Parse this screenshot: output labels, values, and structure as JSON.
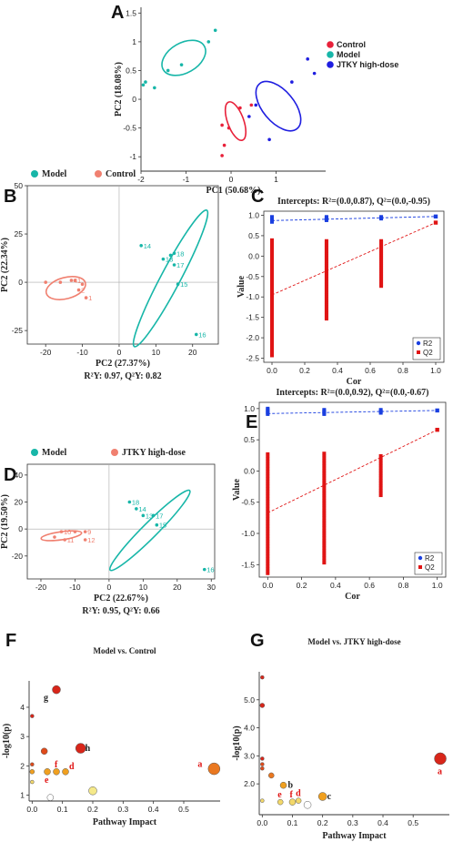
{
  "chart_data": [
    {
      "panel": "A",
      "type": "scatter",
      "title": "",
      "xlabel": "PC1 (50.68%)",
      "ylabel": "PC2 (18.08%)",
      "xlim": [
        -2,
        2.1
      ],
      "ylim": [
        -1.25,
        1.6
      ],
      "xticks": [
        -2,
        -1,
        0,
        1
      ],
      "yticks": [
        -1,
        -0.5,
        0,
        0.5,
        1,
        1.5
      ],
      "xtick_labels": [
        "-2",
        "-1",
        "0",
        "1"
      ],
      "ytick_labels": [
        "-1",
        "-0.5",
        "0",
        "0.5",
        "1",
        "1.5"
      ],
      "legend": [
        "Control",
        "Model",
        "JTKY high-dose"
      ],
      "legend_position": "right",
      "colors": [
        "#e8213a",
        "#17b6a8",
        "#1f1ee0"
      ],
      "series": [
        {
          "name": "Control",
          "color": "#e8213a",
          "points": [
            [
              -0.2,
              -0.45
            ],
            [
              -0.15,
              -0.8
            ],
            [
              -0.2,
              -0.98
            ],
            [
              0.2,
              -0.15
            ],
            [
              0.45,
              -0.1
            ],
            [
              -0.05,
              -0.5
            ]
          ]
        },
        {
          "name": "Model",
          "color": "#17b6a8",
          "points": [
            [
              -1.9,
              0.3
            ],
            [
              -1.7,
              0.2
            ],
            [
              -1.4,
              0.5
            ],
            [
              -1.1,
              0.6
            ],
            [
              -0.5,
              1.0
            ],
            [
              -0.35,
              1.2
            ],
            [
              -1.95,
              0.25
            ]
          ]
        },
        {
          "name": "JTKY high-dose",
          "color": "#1f1ee0",
          "points": [
            [
              0.55,
              -0.1
            ],
            [
              0.85,
              -0.7
            ],
            [
              1.35,
              0.3
            ],
            [
              1.7,
              0.7
            ],
            [
              1.85,
              0.45
            ],
            [
              0.4,
              -0.3
            ]
          ]
        }
      ],
      "ellipses": [
        {
          "cx": -1.05,
          "cy": 0.72,
          "rx": 1.05,
          "ry": 0.52,
          "angle_deg": -30,
          "color": "#17b6a8"
        },
        {
          "cx": 0.1,
          "cy": -0.38,
          "rx": 0.9,
          "ry": 0.28,
          "angle_deg": 70,
          "color": "#e8213a"
        },
        {
          "cx": 1.05,
          "cy": -0.12,
          "rx": 1.3,
          "ry": 0.55,
          "angle_deg": 50,
          "color": "#1f1ee0"
        }
      ]
    },
    {
      "panel": "B",
      "type": "scatter",
      "title": "",
      "xlabel": "PC2 (27.37%)",
      "ylabel": "PC2 (22.34%)",
      "note": "R²Y: 0.97, Q²Y: 0.82",
      "xlim": [
        -25,
        27
      ],
      "ylim": [
        -32,
        50
      ],
      "xticks": [
        -20,
        -10,
        0,
        10,
        20
      ],
      "yticks": [
        -25,
        0,
        25,
        50
      ],
      "xtick_labels": [
        "-20",
        "-10",
        "0",
        "10",
        "20"
      ],
      "ytick_labels": [
        "-25",
        "0",
        "25",
        "50"
      ],
      "legend": [
        "Model",
        "Control"
      ],
      "legend_position": "top-left",
      "colors": [
        "#17b6a8",
        "#f08070"
      ],
      "series": [
        {
          "name": "Model",
          "color": "#17b6a8",
          "points": [
            [
              6,
              19,
              "14"
            ],
            [
              12,
              12,
              "13"
            ],
            [
              15,
              15,
              "18"
            ],
            [
              15,
              9,
              "17"
            ],
            [
              16,
              -1,
              "15"
            ],
            [
              21,
              -27,
              "16"
            ],
            [
              14,
              14,
              ""
            ]
          ]
        },
        {
          "name": "Control",
          "color": "#f08070",
          "points": [
            [
              -20,
              0,
              ""
            ],
            [
              -16,
              0,
              ""
            ],
            [
              -13,
              1,
              "4"
            ],
            [
              -12,
              1,
              "1"
            ],
            [
              -10,
              -1,
              ""
            ],
            [
              -11,
              -4,
              "2"
            ],
            [
              -9,
              -8,
              "1"
            ]
          ]
        }
      ],
      "ellipses": [
        {
          "cx": 14,
          "cy": 2,
          "rx": 42,
          "ry": 10,
          "angle_deg": -62,
          "color": "#17b6a8"
        },
        {
          "cx": -14.5,
          "cy": -3,
          "rx": 11,
          "ry": 11,
          "angle_deg": -15,
          "color": "#f08070"
        }
      ]
    },
    {
      "panel": "C",
      "type": "scatter",
      "title": "Intercepts: R²=(0.0,0.87), Q²=(0.0,-0.95)",
      "xlabel": "Cor",
      "ylabel": "Value",
      "xlim": [
        -0.05,
        1.05
      ],
      "ylim": [
        -2.6,
        1.1
      ],
      "xticks": [
        0,
        0.2,
        0.4,
        0.6,
        0.8,
        1.0
      ],
      "yticks": [
        -2.5,
        -2.0,
        -1.5,
        -1.0,
        -0.5,
        0.0,
        0.5,
        1.0
      ],
      "xtick_labels": [
        "0.0",
        "0.2",
        "0.4",
        "0.6",
        "0.8",
        "1.0"
      ],
      "ytick_labels": [
        "-2.5",
        "-2.0",
        "-1.5",
        "-1.0",
        "-0.5",
        "0.0",
        "0.5",
        "1.0"
      ],
      "legend": [
        "R2",
        "Q2"
      ],
      "legend_position": "bottom-right",
      "colors": [
        "#1a3fe0",
        "#e01414"
      ],
      "series": [
        {
          "name": "R2",
          "color": "#1a3fe0",
          "columns": [
            {
              "x": 0,
              "min": 0.82,
              "max": 0.97
            },
            {
              "x": 0.333,
              "min": 0.86,
              "max": 0.97
            },
            {
              "x": 0.667,
              "min": 0.9,
              "max": 0.97
            }
          ],
          "final": [
            1.0,
            0.97
          ]
        },
        {
          "name": "Q2",
          "color": "#e01414",
          "columns": [
            {
              "x": 0,
              "min": -2.45,
              "max": 0.4
            },
            {
              "x": 0.333,
              "min": -1.55,
              "max": 0.4
            },
            {
              "x": 0.667,
              "min": -0.75,
              "max": 0.4
            }
          ],
          "final": [
            1.0,
            0.82
          ]
        }
      ],
      "regression": [
        {
          "name": "R2",
          "color": "#1a3fe0",
          "intercept": 0.87,
          "end": [
            1.0,
            0.97
          ]
        },
        {
          "name": "Q2",
          "color": "#e01414",
          "intercept": -0.95,
          "end": [
            1.0,
            0.82
          ]
        }
      ]
    },
    {
      "panel": "D",
      "type": "scatter",
      "title": "",
      "xlabel": "PC2 (22.67%)",
      "ylabel": "PC2 (19.50%)",
      "note": "R²Y: 0.95, Q²Y: 0.66",
      "xlim": [
        -24,
        31
      ],
      "ylim": [
        -37,
        48
      ],
      "xticks": [
        -20,
        -10,
        0,
        10,
        20,
        30
      ],
      "yticks": [
        -20,
        0,
        20,
        40
      ],
      "xtick_labels": [
        "-20",
        "-10",
        "0",
        "10",
        "20",
        "30"
      ],
      "ytick_labels": [
        "-20",
        "0",
        "20",
        "40"
      ],
      "legend": [
        "Model",
        "JTKY high-dose"
      ],
      "legend_position": "top-left",
      "colors": [
        "#17b6a8",
        "#f08070"
      ],
      "series": [
        {
          "name": "Model",
          "color": "#17b6a8",
          "points": [
            [
              6,
              20,
              "18"
            ],
            [
              8,
              15,
              "14"
            ],
            [
              10,
              10,
              "13"
            ],
            [
              13,
              10,
              "17"
            ],
            [
              14,
              3,
              "15"
            ],
            [
              28,
              -30,
              "16"
            ]
          ]
        },
        {
          "name": "JTKY high-dose",
          "color": "#f08070",
          "points": [
            [
              -16,
              -6,
              ""
            ],
            [
              -14,
              -2,
              "10"
            ],
            [
              -13,
              -8,
              "11"
            ],
            [
              -10,
              -2,
              ""
            ],
            [
              -7,
              -2,
              "9"
            ],
            [
              -7,
              -8,
              "12"
            ]
          ]
        }
      ],
      "ellipses": [
        {
          "cx": 12,
          "cy": -1,
          "rx": 33,
          "ry": 11,
          "angle_deg": -45,
          "color": "#17b6a8"
        },
        {
          "cx": -14,
          "cy": -5,
          "rx": 12,
          "ry": 6,
          "angle_deg": -8,
          "color": "#f08070"
        }
      ]
    },
    {
      "panel": "E",
      "type": "scatter",
      "title": "Intercepts: R²=(0.0,0.92), Q²=(0.0,-0.67)",
      "xlabel": "Cor",
      "ylabel": "Value",
      "xlim": [
        -0.05,
        1.05
      ],
      "ylim": [
        -1.7,
        1.1
      ],
      "xticks": [
        0,
        0.2,
        0.4,
        0.6,
        0.8,
        1.0
      ],
      "yticks": [
        -1.5,
        -1.0,
        -0.5,
        0.0,
        0.5,
        1.0
      ],
      "xtick_labels": [
        "0.0",
        "0.2",
        "0.4",
        "0.6",
        "0.8",
        "1.0"
      ],
      "ytick_labels": [
        "-1.5",
        "-1.0",
        "-0.5",
        "0.0",
        "0.5",
        "1.0"
      ],
      "legend": [
        "R2",
        "Q2"
      ],
      "legend_position": "bottom-right",
      "colors": [
        "#1a3fe0",
        "#e01414"
      ],
      "series": [
        {
          "name": "R2",
          "color": "#1a3fe0",
          "columns": [
            {
              "x": 0,
              "min": 0.9,
              "max": 1.0
            },
            {
              "x": 0.333,
              "min": 0.9,
              "max": 0.98
            },
            {
              "x": 0.667,
              "min": 0.92,
              "max": 0.98
            }
          ],
          "final": [
            1.0,
            0.97
          ]
        },
        {
          "name": "Q2",
          "color": "#e01414",
          "columns": [
            {
              "x": 0,
              "min": -1.65,
              "max": 0.3
            },
            {
              "x": 0.333,
              "min": -1.48,
              "max": 0.3
            },
            {
              "x": 0.667,
              "min": -0.4,
              "max": 0.25
            }
          ],
          "final": [
            1.0,
            0.66
          ]
        }
      ],
      "regression": [
        {
          "name": "R2",
          "color": "#1a3fe0",
          "intercept": 0.92,
          "end": [
            1.0,
            0.97
          ]
        },
        {
          "name": "Q2",
          "color": "#e01414",
          "intercept": -0.67,
          "end": [
            1.0,
            0.66
          ]
        }
      ]
    },
    {
      "panel": "F",
      "type": "scatter",
      "title": "Model vs. Control",
      "xlabel": "Pathway Impact",
      "ylabel": "-log10(p)",
      "xlim": [
        -0.01,
        0.62
      ],
      "ylim": [
        0.8,
        4.9
      ],
      "xticks": [
        0,
        0.1,
        0.2,
        0.3,
        0.4,
        0.5
      ],
      "yticks": [
        1,
        2,
        3,
        4
      ],
      "xtick_labels": [
        "0.0",
        "0.1",
        "0.2",
        "0.3",
        "0.4",
        "0.5"
      ],
      "ytick_labels": [
        "1",
        "2",
        "3",
        "4"
      ],
      "points": [
        {
          "x": 0.08,
          "y": 4.6,
          "r": 4,
          "color": "#d8261a",
          "label": "g",
          "label_color": "#222222"
        },
        {
          "x": 0.0,
          "y": 3.7,
          "r": 1.5,
          "color": "#d8261a",
          "label": ""
        },
        {
          "x": 0.04,
          "y": 2.5,
          "r": 3,
          "color": "#e04a1a",
          "label": ""
        },
        {
          "x": 0.16,
          "y": 2.6,
          "r": 5,
          "color": "#d8261a",
          "label": "h",
          "label_color": "#222222"
        },
        {
          "x": 0.6,
          "y": 1.9,
          "r": 6,
          "color": "#ea7820",
          "label": "a",
          "label_color": "#e01414"
        },
        {
          "x": 0.0,
          "y": 2.05,
          "r": 1.5,
          "color": "#e04a1a",
          "label": ""
        },
        {
          "x": 0.0,
          "y": 1.8,
          "r": 2,
          "color": "#f0a020",
          "label": ""
        },
        {
          "x": 0.05,
          "y": 1.8,
          "r": 3,
          "color": "#f0a020",
          "label": "e",
          "label_color": "#e01414"
        },
        {
          "x": 0.08,
          "y": 1.8,
          "r": 3,
          "color": "#f0a020",
          "label": "f",
          "label_color": "#e01414"
        },
        {
          "x": 0.11,
          "y": 1.8,
          "r": 3,
          "color": "#f0a020",
          "label": "d",
          "label_color": "#e01414"
        },
        {
          "x": 0.0,
          "y": 1.45,
          "r": 1.5,
          "color": "#f3d86a",
          "label": ""
        },
        {
          "x": 0.2,
          "y": 1.15,
          "r": 4,
          "color": "#f5e98a",
          "label": ""
        },
        {
          "x": 0.06,
          "y": 0.92,
          "r": 3,
          "color": "#ffffff",
          "label": ""
        }
      ]
    },
    {
      "panel": "G",
      "type": "scatter",
      "title": "Model vs. JTKY high-dose",
      "xlabel": "Pathway Impact",
      "ylabel": "-log10(p)",
      "xlim": [
        -0.01,
        0.62
      ],
      "ylim": [
        0.9,
        6.0
      ],
      "xticks": [
        0,
        0.1,
        0.2,
        0.3,
        0.4,
        0.5
      ],
      "yticks": [
        2,
        3,
        4,
        5
      ],
      "xtick_labels": [
        "0.0",
        "0.1",
        "0.2",
        "0.3",
        "0.4",
        "0.5"
      ],
      "ytick_labels": [
        "2.0",
        "3.0",
        "4.0",
        "5.0"
      ],
      "points": [
        {
          "x": 0.0,
          "y": 5.8,
          "r": 1.5,
          "color": "#d8261a",
          "label": ""
        },
        {
          "x": 0.0,
          "y": 4.8,
          "r": 2,
          "color": "#d8261a",
          "label": ""
        },
        {
          "x": 0.0,
          "y": 2.9,
          "r": 1.5,
          "color": "#d8261a",
          "label": ""
        },
        {
          "x": 0.0,
          "y": 2.7,
          "r": 1.5,
          "color": "#e04a1a",
          "label": ""
        },
        {
          "x": 0.0,
          "y": 2.55,
          "r": 1.5,
          "color": "#e04a1a",
          "label": ""
        },
        {
          "x": 0.03,
          "y": 2.3,
          "r": 2.5,
          "color": "#ea7820",
          "label": ""
        },
        {
          "x": 0.59,
          "y": 2.9,
          "r": 6,
          "color": "#d8261a",
          "label": "a",
          "label_color": "#e01414"
        },
        {
          "x": 0.07,
          "y": 1.95,
          "r": 3,
          "color": "#f0a020",
          "label": "b",
          "label_color": "#222222"
        },
        {
          "x": 0.2,
          "y": 1.55,
          "r": 4,
          "color": "#f0a020",
          "label": "c",
          "label_color": "#222222"
        },
        {
          "x": 0.06,
          "y": 1.35,
          "r": 2.5,
          "color": "#f3d86a",
          "label": "e",
          "label_color": "#e01414"
        },
        {
          "x": 0.1,
          "y": 1.35,
          "r": 3,
          "color": "#f3d86a",
          "label": "f",
          "label_color": "#e01414"
        },
        {
          "x": 0.12,
          "y": 1.4,
          "r": 2.5,
          "color": "#f3d86a",
          "label": "d",
          "label_color": "#e01414"
        },
        {
          "x": 0.0,
          "y": 1.4,
          "r": 1.5,
          "color": "#f3d86a",
          "label": ""
        },
        {
          "x": 0.15,
          "y": 1.25,
          "r": 3.5,
          "color": "#ffffff",
          "label": ""
        }
      ]
    }
  ]
}
